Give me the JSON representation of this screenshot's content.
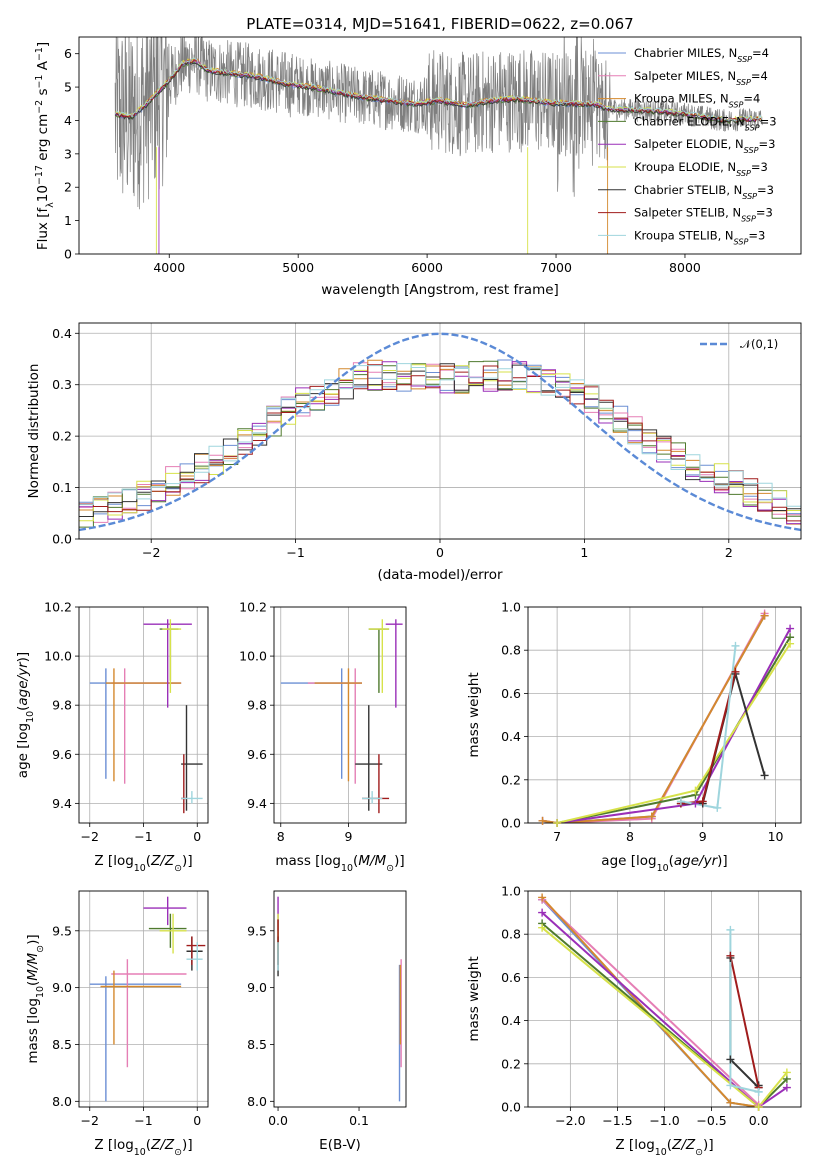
{
  "colors": {
    "Chabrier MILES": "#6b8fd4",
    "Salpeter MILES": "#e57fb5",
    "Kroupa MILES": "#d4892e",
    "Chabrier ELODIE": "#4f7a2e",
    "Salpeter ELODIE": "#9a2fb8",
    "Kroupa ELODIE": "#d7e24a",
    "Chabrier STELIB": "#333333",
    "Salpeter STELIB": "#a01c1c",
    "Kroupa STELIB": "#9fd5dd",
    "normal_curve": "#5b8ad6",
    "spectrum": "#7f7f7f"
  },
  "chart_data": [
    {
      "id": "spectrum",
      "type": "line",
      "title": "PLATE=0314, MJD=51641, FIBERID=0622, z=0.067",
      "xlabel": "wavelength [Angstrom, rest frame]",
      "ylabel": "Flux [fλ10⁻¹⁷ erg cm⁻² s⁻¹ A⁻¹]",
      "xlim": [
        3300,
        8900
      ],
      "ylim": [
        0,
        6.5
      ],
      "xticks": [
        4000,
        5000,
        6000,
        7000,
        8000
      ],
      "yticks": [
        0,
        1,
        2,
        3,
        4,
        5,
        6
      ],
      "grid": false,
      "legend_position": "top-right",
      "legend": [
        "Chabrier MILES, N_SSP=4",
        "Salpeter MILES, N_SSP=4",
        "Kroupa MILES, N_SSP=4",
        "Chabrier ELODIE, N_SSP=3",
        "Salpeter ELODIE, N_SSP=3",
        "Kroupa ELODIE, N_SSP=3",
        "Chabrier STELIB, N_SSP=3",
        "Salpeter STELIB, N_SSP=3",
        "Kroupa STELIB, N_SSP=3"
      ],
      "data_wavelength_range": [
        3580,
        8600
      ],
      "model_curve": {
        "x": [
          3580,
          3700,
          3800,
          3900,
          4000,
          4100,
          4200,
          4300,
          4500,
          4700,
          4900,
          5100,
          5300,
          5500,
          5700,
          5900,
          6100,
          6300,
          6500,
          6700,
          6900,
          7100,
          7300,
          7400,
          7700,
          8000,
          8300,
          8600
        ],
        "y": [
          4.2,
          4.1,
          4.4,
          4.8,
          5.2,
          5.7,
          5.8,
          5.5,
          5.4,
          5.3,
          5.1,
          5.0,
          4.85,
          4.7,
          4.6,
          4.5,
          4.6,
          4.45,
          4.6,
          4.65,
          4.55,
          4.5,
          4.5,
          4.35,
          4.3,
          4.2,
          4.0,
          4.05
        ]
      }
    },
    {
      "id": "residuals",
      "type": "histogram",
      "xlabel": "(data-model)/error",
      "ylabel": "Normed distribution",
      "xlim": [
        -2.5,
        2.5
      ],
      "ylim": [
        0,
        0.42
      ],
      "xticks": [
        -2,
        -1,
        0,
        1,
        2
      ],
      "yticks": [
        0.0,
        0.1,
        0.2,
        0.3,
        0.4
      ],
      "grid": true,
      "legend_position": "top-right",
      "legend": [
        "𝒩(0,1)"
      ],
      "bin_width": 0.1,
      "approximate_envelope": {
        "x": [
          -2.5,
          -2.0,
          -1.5,
          -1.0,
          -0.5,
          0.0,
          0.5,
          1.0,
          1.5,
          2.0,
          2.5
        ],
        "y": [
          0.04,
          0.09,
          0.16,
          0.26,
          0.32,
          0.31,
          0.32,
          0.28,
          0.18,
          0.11,
          0.05
        ]
      }
    },
    {
      "id": "age_vs_Z",
      "type": "errorbar",
      "xlabel": "Z [log₁₀(Z/Z⊙)]",
      "ylabel": "age  [log₁₀(age/yr)]",
      "xlim": [
        -2.2,
        0.2
      ],
      "ylim": [
        9.32,
        10.2
      ],
      "xticks": [
        -2,
        -1,
        0
      ],
      "yticks": [
        9.4,
        9.6,
        9.8,
        10.0,
        10.2
      ],
      "grid": true,
      "points": [
        {
          "model": "Chabrier MILES",
          "x": [
            -2.0,
            -0.3
          ],
          "y": [
            9.5,
            9.95
          ],
          "cx": -1.7,
          "cy": 9.89
        },
        {
          "model": "Salpeter MILES",
          "x": [
            -1.6,
            -0.3
          ],
          "y": [
            9.48,
            9.95
          ],
          "cx": -1.35,
          "cy": 9.89
        },
        {
          "model": "Kroupa MILES",
          "x": [
            -1.7,
            -0.3
          ],
          "y": [
            9.49,
            9.95
          ],
          "cx": -1.55,
          "cy": 9.89
        },
        {
          "model": "Chabrier ELODIE",
          "x": [
            -0.7,
            -0.35
          ],
          "y": [
            9.9,
            10.11
          ],
          "cx": -0.5,
          "cy": 10.11
        },
        {
          "model": "Salpeter ELODIE",
          "x": [
            -1.0,
            -0.1
          ],
          "y": [
            9.79,
            10.15
          ],
          "cx": -0.55,
          "cy": 10.13
        },
        {
          "model": "Kroupa ELODIE",
          "x": [
            -0.65,
            -0.3
          ],
          "y": [
            9.85,
            10.15
          ],
          "cx": -0.5,
          "cy": 10.11
        },
        {
          "model": "Chabrier STELIB",
          "x": [
            -0.3,
            0.1
          ],
          "y": [
            9.37,
            9.8
          ],
          "cx": -0.2,
          "cy": 9.56
        },
        {
          "model": "Salpeter STELIB",
          "x": [
            -0.3,
            -0.2
          ],
          "y": [
            9.36,
            9.6
          ],
          "cx": -0.25,
          "cy": 9.42
        },
        {
          "model": "Kroupa STELIB",
          "x": [
            -0.3,
            0.1
          ],
          "y": [
            9.4,
            9.45
          ],
          "cx": -0.1,
          "cy": 9.42
        }
      ]
    },
    {
      "id": "age_vs_mass",
      "type": "errorbar",
      "xlabel": "mass [log₁₀(M/M⊙)]",
      "ylabel": "",
      "xlim": [
        7.9,
        9.85
      ],
      "ylim": [
        9.32,
        10.2
      ],
      "xticks": [
        8,
        9
      ],
      "yticks": [
        9.4,
        9.6,
        9.8,
        10.0,
        10.2
      ],
      "grid": true,
      "points": [
        {
          "model": "Chabrier MILES",
          "x": [
            8.0,
            9.2
          ],
          "y": [
            9.5,
            9.95
          ],
          "cx": 8.9,
          "cy": 9.89
        },
        {
          "model": "Salpeter MILES",
          "x": [
            8.4,
            9.2
          ],
          "y": [
            9.48,
            9.95
          ],
          "cx": 9.1,
          "cy": 9.89
        },
        {
          "model": "Kroupa MILES",
          "x": [
            8.5,
            9.2
          ],
          "y": [
            9.49,
            9.95
          ],
          "cx": 9.0,
          "cy": 9.89
        },
        {
          "model": "Chabrier ELODIE",
          "x": [
            9.3,
            9.6
          ],
          "y": [
            9.85,
            10.11
          ],
          "cx": 9.45,
          "cy": 10.11
        },
        {
          "model": "Salpeter ELODIE",
          "x": [
            9.55,
            9.8
          ],
          "y": [
            9.79,
            10.15
          ],
          "cx": 9.7,
          "cy": 10.13
        },
        {
          "model": "Kroupa ELODIE",
          "x": [
            9.3,
            9.6
          ],
          "y": [
            9.85,
            10.15
          ],
          "cx": 9.5,
          "cy": 10.11
        },
        {
          "model": "Chabrier STELIB",
          "x": [
            9.1,
            9.5
          ],
          "y": [
            9.37,
            9.8
          ],
          "cx": 9.3,
          "cy": 9.56
        },
        {
          "model": "Salpeter STELIB",
          "x": [
            9.2,
            9.6
          ],
          "y": [
            9.36,
            9.6
          ],
          "cx": 9.45,
          "cy": 9.42
        },
        {
          "model": "Kroupa STELIB",
          "x": [
            9.2,
            9.5
          ],
          "y": [
            9.4,
            9.45
          ],
          "cx": 9.35,
          "cy": 9.42
        }
      ]
    },
    {
      "id": "mass_weight_vs_age",
      "type": "line",
      "xlabel": "age  [log₁₀(age/yr)]",
      "ylabel": "mass weight",
      "xlim": [
        6.6,
        10.35
      ],
      "ylim": [
        0.0,
        1.0
      ],
      "xticks": [
        7,
        8,
        9,
        10
      ],
      "yticks": [
        0.0,
        0.2,
        0.4,
        0.6,
        0.8,
        1.0
      ],
      "grid": true,
      "series": [
        {
          "model": "Chabrier MILES",
          "x": [
            6.8,
            7.0,
            8.3,
            9.85
          ],
          "y": [
            0.01,
            0.0,
            0.03,
            0.96
          ]
        },
        {
          "model": "Salpeter MILES",
          "x": [
            6.8,
            7.0,
            8.3,
            9.85
          ],
          "y": [
            0.01,
            0.0,
            0.02,
            0.97
          ]
        },
        {
          "model": "Kroupa MILES",
          "x": [
            6.8,
            7.0,
            8.3,
            9.85
          ],
          "y": [
            0.01,
            0.0,
            0.03,
            0.96
          ]
        },
        {
          "model": "Chabrier ELODIE",
          "x": [
            7.0,
            8.9,
            10.2
          ],
          "y": [
            0.0,
            0.13,
            0.86
          ]
        },
        {
          "model": "Salpeter ELODIE",
          "x": [
            7.0,
            8.9,
            10.2
          ],
          "y": [
            0.0,
            0.09,
            0.9
          ]
        },
        {
          "model": "Kroupa ELODIE",
          "x": [
            7.0,
            8.9,
            10.2
          ],
          "y": [
            0.0,
            0.15,
            0.83
          ]
        },
        {
          "model": "Chabrier STELIB",
          "x": [
            8.7,
            9.0,
            9.45,
            9.85
          ],
          "y": [
            0.09,
            0.09,
            0.69,
            0.22
          ]
        },
        {
          "model": "Salpeter STELIB",
          "x": [
            8.7,
            9.0,
            9.45
          ],
          "y": [
            0.09,
            0.1,
            0.7
          ]
        },
        {
          "model": "Kroupa STELIB",
          "x": [
            8.7,
            9.2,
            9.45
          ],
          "y": [
            0.1,
            0.07,
            0.82
          ]
        }
      ]
    },
    {
      "id": "mass_vs_Z",
      "type": "errorbar",
      "xlabel": "Z [log₁₀(Z/Z⊙)]",
      "ylabel": "mass [log₁₀(M/M⊙)]",
      "xlim": [
        -2.2,
        0.2
      ],
      "ylim": [
        7.95,
        9.85
      ],
      "xticks": [
        -2,
        -1,
        0
      ],
      "yticks": [
        8.0,
        8.5,
        9.0,
        9.5
      ],
      "grid": true,
      "points": [
        {
          "model": "Chabrier MILES",
          "x": [
            -2.0,
            -0.3
          ],
          "y": [
            8.0,
            9.1
          ],
          "cx": -1.7,
          "cy": 9.03
        },
        {
          "model": "Salpeter MILES",
          "x": [
            -1.6,
            -0.2
          ],
          "y": [
            8.3,
            9.25
          ],
          "cx": -1.3,
          "cy": 9.12
        },
        {
          "model": "Kroupa MILES",
          "x": [
            -1.8,
            -0.3
          ],
          "y": [
            8.5,
            9.15
          ],
          "cx": -1.55,
          "cy": 9.01
        },
        {
          "model": "Chabrier ELODIE",
          "x": [
            -0.9,
            -0.2
          ],
          "y": [
            9.35,
            9.65
          ],
          "cx": -0.5,
          "cy": 9.52
        },
        {
          "model": "Salpeter ELODIE",
          "x": [
            -1.0,
            -0.2
          ],
          "y": [
            9.55,
            9.8
          ],
          "cx": -0.55,
          "cy": 9.7
        },
        {
          "model": "Kroupa ELODIE",
          "x": [
            -0.7,
            -0.2
          ],
          "y": [
            9.3,
            9.65
          ],
          "cx": -0.45,
          "cy": 9.5
        },
        {
          "model": "Chabrier STELIB",
          "x": [
            -0.2,
            0.1
          ],
          "y": [
            9.15,
            9.45
          ],
          "cx": -0.1,
          "cy": 9.32
        },
        {
          "model": "Salpeter STELIB",
          "x": [
            -0.2,
            0.15
          ],
          "y": [
            9.2,
            9.45
          ],
          "cx": -0.1,
          "cy": 9.37
        },
        {
          "model": "Kroupa STELIB",
          "x": [
            -0.2,
            0.1
          ],
          "y": [
            9.15,
            9.4
          ],
          "cx": 0.0,
          "cy": 9.25
        }
      ]
    },
    {
      "id": "mass_vs_ebv",
      "type": "errorbar",
      "xlabel": "E(B-V)",
      "ylabel": "",
      "xlim": [
        -0.005,
        0.158
      ],
      "ylim": [
        7.95,
        9.85
      ],
      "xticks": [
        0.0,
        0.1
      ],
      "yticks": [
        8.0,
        8.5,
        9.0,
        9.5
      ],
      "grid": false,
      "points": [
        {
          "model": "Chabrier MILES",
          "x": [
            0.15,
            0.15
          ],
          "y": [
            8.0,
            9.2
          ],
          "cx": 0.15,
          "cy": 8.5
        },
        {
          "model": "Salpeter MILES",
          "x": [
            0.152,
            0.152
          ],
          "y": [
            8.3,
            9.25
          ],
          "cx": 0.152,
          "cy": 8.9
        },
        {
          "model": "Kroupa MILES",
          "x": [
            0.151,
            0.151
          ],
          "y": [
            8.5,
            9.2
          ],
          "cx": 0.151,
          "cy": 8.8
        },
        {
          "model": "Chabrier ELODIE",
          "x": [
            0.0,
            0.0
          ],
          "y": [
            9.2,
            9.6
          ],
          "cx": 0.0,
          "cy": 9.4
        },
        {
          "model": "Salpeter ELODIE",
          "x": [
            0.0,
            0.0
          ],
          "y": [
            9.5,
            9.8
          ],
          "cx": 0.0,
          "cy": 9.65
        },
        {
          "model": "Kroupa ELODIE",
          "x": [
            0.0,
            0.0
          ],
          "y": [
            9.3,
            9.65
          ],
          "cx": 0.0,
          "cy": 9.5
        },
        {
          "model": "Chabrier STELIB",
          "x": [
            0.0,
            0.0
          ],
          "y": [
            9.1,
            9.45
          ],
          "cx": 0.0,
          "cy": 9.3
        },
        {
          "model": "Salpeter STELIB",
          "x": [
            0.0,
            0.0
          ],
          "y": [
            9.2,
            9.6
          ],
          "cx": 0.0,
          "cy": 9.4
        },
        {
          "model": "Kroupa STELIB",
          "x": [
            0.0,
            0.0
          ],
          "y": [
            9.15,
            9.4
          ],
          "cx": 0.0,
          "cy": 9.25
        }
      ]
    },
    {
      "id": "mass_weight_vs_Z",
      "type": "line",
      "xlabel": "Z [log₁₀(Z/Z⊙)]",
      "ylabel": "mass weight",
      "xlim": [
        -2.45,
        0.45
      ],
      "ylim": [
        0.0,
        1.0
      ],
      "xticks": [
        -2.0,
        -1.5,
        -1.0,
        -0.5,
        0.0
      ],
      "yticks": [
        0.0,
        0.2,
        0.4,
        0.6,
        0.8,
        1.0
      ],
      "grid": true,
      "series": [
        {
          "model": "Chabrier MILES",
          "x": [
            -2.3,
            -0.3,
            0.0
          ],
          "y": [
            0.96,
            0.02,
            0.0
          ]
        },
        {
          "model": "Salpeter MILES",
          "x": [
            -2.3,
            0.0,
            0.0
          ],
          "y": [
            0.96,
            0.01,
            0.0
          ]
        },
        {
          "model": "Kroupa MILES",
          "x": [
            -2.3,
            -0.3,
            0.0
          ],
          "y": [
            0.97,
            0.02,
            0.0
          ]
        },
        {
          "model": "Chabrier ELODIE",
          "x": [
            -2.3,
            0.0,
            0.3
          ],
          "y": [
            0.85,
            0.0,
            0.13
          ]
        },
        {
          "model": "Salpeter ELODIE",
          "x": [
            -2.3,
            0.0,
            0.3
          ],
          "y": [
            0.9,
            0.0,
            0.09
          ]
        },
        {
          "model": "Kroupa ELODIE",
          "x": [
            -2.3,
            0.0,
            0.3
          ],
          "y": [
            0.83,
            0.0,
            0.16
          ]
        },
        {
          "model": "Chabrier STELIB",
          "x": [
            -0.3,
            -0.3,
            0.0,
            0.0
          ],
          "y": [
            0.69,
            0.22,
            0.09,
            0.1
          ]
        },
        {
          "model": "Salpeter STELIB",
          "x": [
            -0.3,
            0.0
          ],
          "y": [
            0.7,
            0.09
          ]
        },
        {
          "model": "Kroupa STELIB",
          "x": [
            -0.3,
            -0.3,
            0.0,
            0.0
          ],
          "y": [
            0.82,
            0.1,
            0.07,
            0.07
          ]
        }
      ]
    }
  ]
}
